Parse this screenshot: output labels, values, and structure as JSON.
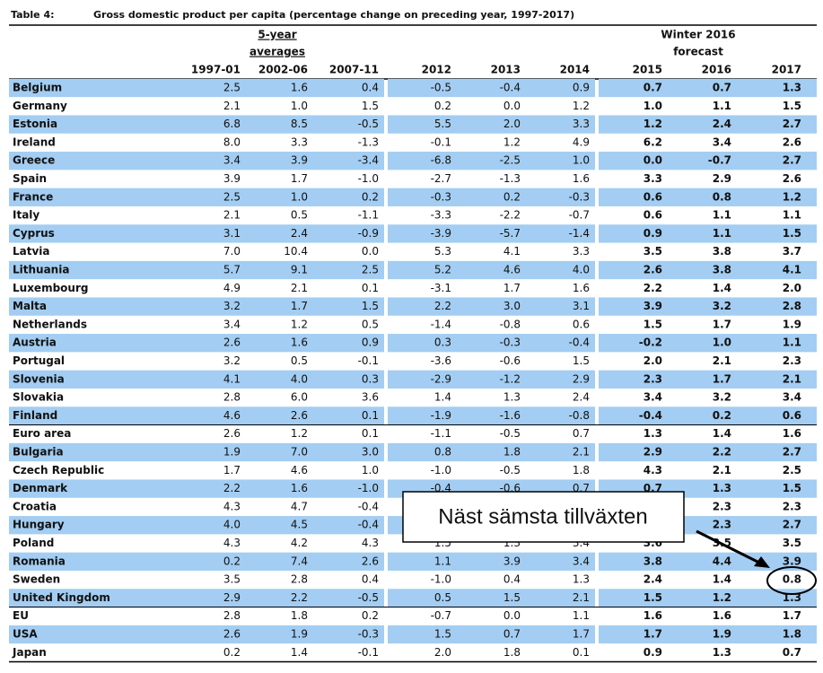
{
  "title_label": "Table 4:",
  "title": "Gross domestic product per capita (percentage change on preceding year, 1997-2017)",
  "group_headers": {
    "averages": [
      "5-year",
      "averages"
    ],
    "forecast": [
      "Winter 2016",
      "forecast"
    ]
  },
  "columns": [
    "1997-01",
    "2002-06",
    "2007-11",
    "2012",
    "2013",
    "2014",
    "2015",
    "2016",
    "2017"
  ],
  "rows": [
    {
      "country": "Belgium",
      "values": [
        "2.5",
        "1.6",
        "0.4",
        "-0.5",
        "-0.4",
        "0.9",
        "0.7",
        "0.7",
        "1.3"
      ]
    },
    {
      "country": "Germany",
      "values": [
        "2.1",
        "1.0",
        "1.5",
        "0.2",
        "0.0",
        "1.2",
        "1.0",
        "1.1",
        "1.5"
      ]
    },
    {
      "country": "Estonia",
      "values": [
        "6.8",
        "8.5",
        "-0.5",
        "5.5",
        "2.0",
        "3.3",
        "1.2",
        "2.4",
        "2.7"
      ]
    },
    {
      "country": "Ireland",
      "values": [
        "8.0",
        "3.3",
        "-1.3",
        "-0.1",
        "1.2",
        "4.9",
        "6.2",
        "3.4",
        "2.6"
      ]
    },
    {
      "country": "Greece",
      "values": [
        "3.4",
        "3.9",
        "-3.4",
        "-6.8",
        "-2.5",
        "1.0",
        "0.0",
        "-0.7",
        "2.7"
      ]
    },
    {
      "country": "Spain",
      "values": [
        "3.9",
        "1.7",
        "-1.0",
        "-2.7",
        "-1.3",
        "1.6",
        "3.3",
        "2.9",
        "2.6"
      ]
    },
    {
      "country": "France",
      "values": [
        "2.5",
        "1.0",
        "0.2",
        "-0.3",
        "0.2",
        "-0.3",
        "0.6",
        "0.8",
        "1.2"
      ]
    },
    {
      "country": "Italy",
      "values": [
        "2.1",
        "0.5",
        "-1.1",
        "-3.3",
        "-2.2",
        "-0.7",
        "0.6",
        "1.1",
        "1.1"
      ]
    },
    {
      "country": "Cyprus",
      "values": [
        "3.1",
        "2.4",
        "-0.9",
        "-3.9",
        "-5.7",
        "-1.4",
        "0.9",
        "1.1",
        "1.5"
      ]
    },
    {
      "country": "Latvia",
      "values": [
        "7.0",
        "10.4",
        "0.0",
        "5.3",
        "4.1",
        "3.3",
        "3.5",
        "3.8",
        "3.7"
      ]
    },
    {
      "country": "Lithuania",
      "values": [
        "5.7",
        "9.1",
        "2.5",
        "5.2",
        "4.6",
        "4.0",
        "2.6",
        "3.8",
        "4.1"
      ]
    },
    {
      "country": "Luxembourg",
      "values": [
        "4.9",
        "2.1",
        "0.1",
        "-3.1",
        "1.7",
        "1.6",
        "2.2",
        "1.4",
        "2.0"
      ]
    },
    {
      "country": "Malta",
      "values": [
        "3.2",
        "1.7",
        "1.5",
        "2.2",
        "3.0",
        "3.1",
        "3.9",
        "3.2",
        "2.8"
      ]
    },
    {
      "country": "Netherlands",
      "values": [
        "3.4",
        "1.2",
        "0.5",
        "-1.4",
        "-0.8",
        "0.6",
        "1.5",
        "1.7",
        "1.9"
      ]
    },
    {
      "country": "Austria",
      "values": [
        "2.6",
        "1.6",
        "0.9",
        "0.3",
        "-0.3",
        "-0.4",
        "-0.2",
        "1.0",
        "1.1"
      ]
    },
    {
      "country": "Portugal",
      "values": [
        "3.2",
        "0.5",
        "-0.1",
        "-3.6",
        "-0.6",
        "1.5",
        "2.0",
        "2.1",
        "2.3"
      ]
    },
    {
      "country": "Slovenia",
      "values": [
        "4.1",
        "4.0",
        "0.3",
        "-2.9",
        "-1.2",
        "2.9",
        "2.3",
        "1.7",
        "2.1"
      ]
    },
    {
      "country": "Slovakia",
      "values": [
        "2.8",
        "6.0",
        "3.6",
        "1.4",
        "1.3",
        "2.4",
        "3.4",
        "3.2",
        "3.4"
      ]
    },
    {
      "country": "Finland",
      "values": [
        "4.6",
        "2.6",
        "0.1",
        "-1.9",
        "-1.6",
        "-0.8",
        "-0.4",
        "0.2",
        "0.6"
      ]
    },
    {
      "country": "Euro area",
      "values": [
        "2.6",
        "1.2",
        "0.1",
        "-1.1",
        "-0.5",
        "0.7",
        "1.3",
        "1.4",
        "1.6"
      ]
    },
    {
      "country": "Bulgaria",
      "values": [
        "1.9",
        "7.0",
        "3.0",
        "0.8",
        "1.8",
        "2.1",
        "2.9",
        "2.2",
        "2.7"
      ]
    },
    {
      "country": "Czech Republic",
      "values": [
        "1.7",
        "4.6",
        "1.0",
        "-1.0",
        "-0.5",
        "1.8",
        "4.3",
        "2.1",
        "2.5"
      ]
    },
    {
      "country": "Denmark",
      "values": [
        "2.2",
        "1.6",
        "-1.0",
        "-0.4",
        "-0.6",
        "0.7",
        "0.7",
        "1.3",
        "1.5"
      ]
    },
    {
      "country": "Croatia",
      "values": [
        "4.3",
        "4.7",
        "-0.4",
        null,
        null,
        null,
        null,
        "2.3",
        "2.3"
      ]
    },
    {
      "country": "Hungary",
      "values": [
        "4.0",
        "4.5",
        "-0.4",
        null,
        null,
        null,
        null,
        "2.3",
        "2.7"
      ]
    },
    {
      "country": "Poland",
      "values": [
        "4.3",
        "4.2",
        "4.3",
        "1.5",
        "1.3",
        "3.4",
        "3.6",
        "3.5",
        "3.5"
      ]
    },
    {
      "country": "Romania",
      "values": [
        "0.2",
        "7.4",
        "2.6",
        "1.1",
        "3.9",
        "3.4",
        "3.8",
        "4.4",
        "3.9"
      ]
    },
    {
      "country": "Sweden",
      "values": [
        "3.5",
        "2.8",
        "0.4",
        "-1.0",
        "0.4",
        "1.3",
        "2.4",
        "1.4",
        "0.8"
      ]
    },
    {
      "country": "United Kingdom",
      "values": [
        "2.9",
        "2.2",
        "-0.5",
        "0.5",
        "1.5",
        "2.1",
        "1.5",
        "1.2",
        "1.3"
      ]
    },
    {
      "country": "EU",
      "values": [
        "2.8",
        "1.8",
        "0.2",
        "-0.7",
        "0.0",
        "1.1",
        "1.6",
        "1.6",
        "1.7"
      ]
    },
    {
      "country": "USA",
      "values": [
        "2.6",
        "1.9",
        "-0.3",
        "1.5",
        "0.7",
        "1.7",
        "1.7",
        "1.9",
        "1.8"
      ]
    },
    {
      "country": "Japan",
      "values": [
        "0.2",
        "1.4",
        "-0.1",
        "2.0",
        "1.8",
        "0.1",
        "0.9",
        "1.3",
        "0.7"
      ]
    }
  ],
  "callout": "Näst sämsta tillväxten"
}
